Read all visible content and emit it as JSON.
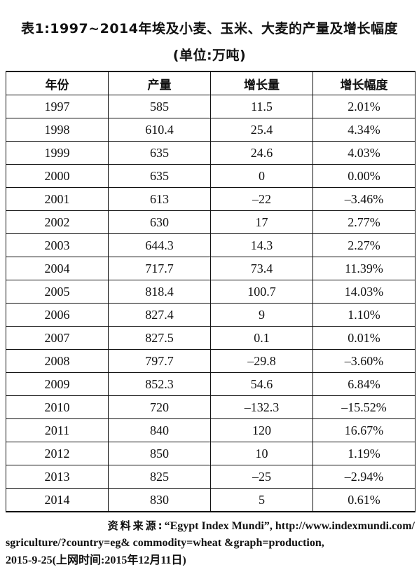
{
  "title_line1": "表1:1997~2014年埃及小麦、玉米、大麦的产量及增长幅度",
  "title_line2": "(单位:万吨)",
  "table": {
    "headers": [
      "年份",
      "产量",
      "增长量",
      "增长幅度"
    ],
    "rows": [
      [
        "1997",
        "585",
        "11.5",
        "2.01%"
      ],
      [
        "1998",
        "610.4",
        "25.4",
        "4.34%"
      ],
      [
        "1999",
        "635",
        "24.6",
        "4.03%"
      ],
      [
        "2000",
        "635",
        "0",
        "0.00%"
      ],
      [
        "2001",
        "613",
        "–22",
        "–3.46%"
      ],
      [
        "2002",
        "630",
        "17",
        "2.77%"
      ],
      [
        "2003",
        "644.3",
        "14.3",
        "2.27%"
      ],
      [
        "2004",
        "717.7",
        "73.4",
        "11.39%"
      ],
      [
        "2005",
        "818.4",
        "100.7",
        "14.03%"
      ],
      [
        "2006",
        "827.4",
        "9",
        "1.10%"
      ],
      [
        "2007",
        "827.5",
        "0.1",
        "0.01%"
      ],
      [
        "2008",
        "797.7",
        "–29.8",
        "–3.60%"
      ],
      [
        "2009",
        "852.3",
        "54.6",
        "6.84%"
      ],
      [
        "2010",
        "720",
        "–132.3",
        "–15.52%"
      ],
      [
        "2011",
        "840",
        "120",
        "16.67%"
      ],
      [
        "2012",
        "850",
        "10",
        "1.19%"
      ],
      [
        "2013",
        "825",
        "–25",
        "–2.94%"
      ],
      [
        "2014",
        "830",
        "5",
        "0.61%"
      ]
    ]
  },
  "source": {
    "label": "资料来源:",
    "line1_rest": "“Egypt Index Mundi”, http://www.indexmundi.com/",
    "line2": "sgriculture/?country=eg&  commodity=wheat  &graph=production,",
    "line3": "2015-9-25(上网时间:2015年12月11日)"
  }
}
